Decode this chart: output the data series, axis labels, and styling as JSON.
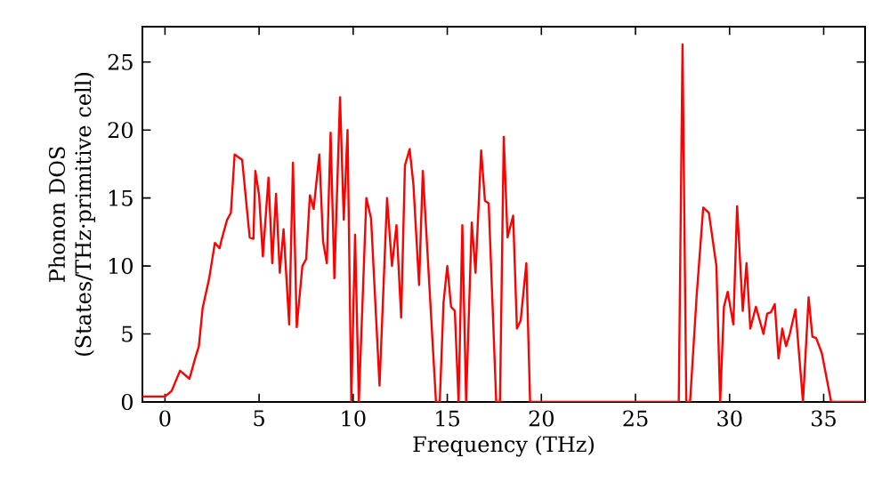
{
  "chart_data": {
    "type": "line",
    "xlabel": "Frequency (THz)",
    "ylabel": "Phonon DOS (States/THz·primitive cell)",
    "xlim": [
      -1.2,
      37.2
    ],
    "ylim": [
      0,
      27.6
    ],
    "xticks": [
      0,
      5,
      10,
      15,
      20,
      25,
      30,
      35
    ],
    "yticks": [
      0,
      5,
      10,
      15,
      20,
      25
    ],
    "marker": "none",
    "line_style": "solid",
    "series": [
      {
        "color": "#ff0000",
        "x": [
          -1.2,
          0.0,
          0.35,
          0.8,
          1.3,
          1.6,
          1.8,
          2.0,
          2.35,
          2.65,
          2.9,
          3.0,
          3.3,
          3.5,
          3.7,
          4.1,
          4.5,
          4.7,
          4.8,
          5.0,
          5.2,
          5.5,
          5.7,
          5.9,
          6.1,
          6.3,
          6.6,
          6.8,
          7.0,
          7.3,
          7.5,
          7.7,
          7.9,
          8.2,
          8.4,
          8.6,
          8.8,
          9.0,
          9.3,
          9.5,
          9.7,
          9.9,
          10.1,
          10.3,
          10.7,
          10.95,
          11.4,
          11.8,
          12.06,
          12.3,
          12.55,
          12.75,
          13.0,
          13.2,
          13.5,
          13.7,
          14.4,
          14.6,
          14.8,
          15.0,
          15.2,
          15.4,
          15.6,
          15.8,
          16.0,
          16.3,
          16.5,
          16.8,
          17.0,
          17.2,
          17.6,
          17.8,
          18.0,
          18.2,
          18.5,
          18.7,
          18.9,
          19.2,
          19.4,
          27.3,
          27.5,
          27.7,
          27.9,
          28.25,
          28.6,
          28.9,
          29.3,
          29.5,
          29.7,
          29.9,
          30.2,
          30.4,
          30.7,
          30.9,
          31.1,
          31.4,
          31.8,
          32.0,
          32.2,
          32.4,
          32.6,
          32.8,
          33.0,
          33.2,
          33.5,
          33.9,
          34.2,
          34.4,
          34.6,
          34.9,
          35.4,
          37.2
        ],
        "values": [
          0.4,
          0.4,
          0.8,
          2.3,
          1.7,
          3.2,
          4.1,
          6.9,
          9.1,
          11.7,
          11.3,
          11.9,
          13.4,
          13.9,
          18.2,
          17.8,
          12.1,
          12.0,
          17.0,
          15.2,
          10.7,
          16.5,
          10.2,
          15.3,
          9.5,
          12.7,
          5.7,
          17.6,
          5.5,
          10.0,
          10.5,
          15.2,
          14.2,
          18.2,
          11.8,
          10.2,
          19.8,
          9.1,
          22.4,
          13.4,
          20.0,
          0,
          12.3,
          0,
          15.0,
          13.5,
          1.2,
          15.0,
          10.0,
          13.0,
          6.2,
          17.4,
          18.6,
          16.0,
          8.6,
          17.0,
          0,
          0,
          7.3,
          10.0,
          7.0,
          6.7,
          0,
          13.0,
          0,
          13.2,
          9.5,
          18.5,
          14.8,
          14.6,
          0,
          0,
          19.5,
          12.1,
          13.7,
          5.4,
          6.0,
          10.2,
          0,
          0,
          26.3,
          0,
          0,
          7.8,
          14.3,
          13.9,
          10.0,
          0,
          7.0,
          8.1,
          5.7,
          14.4,
          6.7,
          10.2,
          5.4,
          7.0,
          5.0,
          6.5,
          6.6,
          7.2,
          3.2,
          5.4,
          4.1,
          5.0,
          6.8,
          0,
          7.7,
          4.8,
          4.7,
          3.6,
          0,
          0
        ]
      }
    ]
  }
}
